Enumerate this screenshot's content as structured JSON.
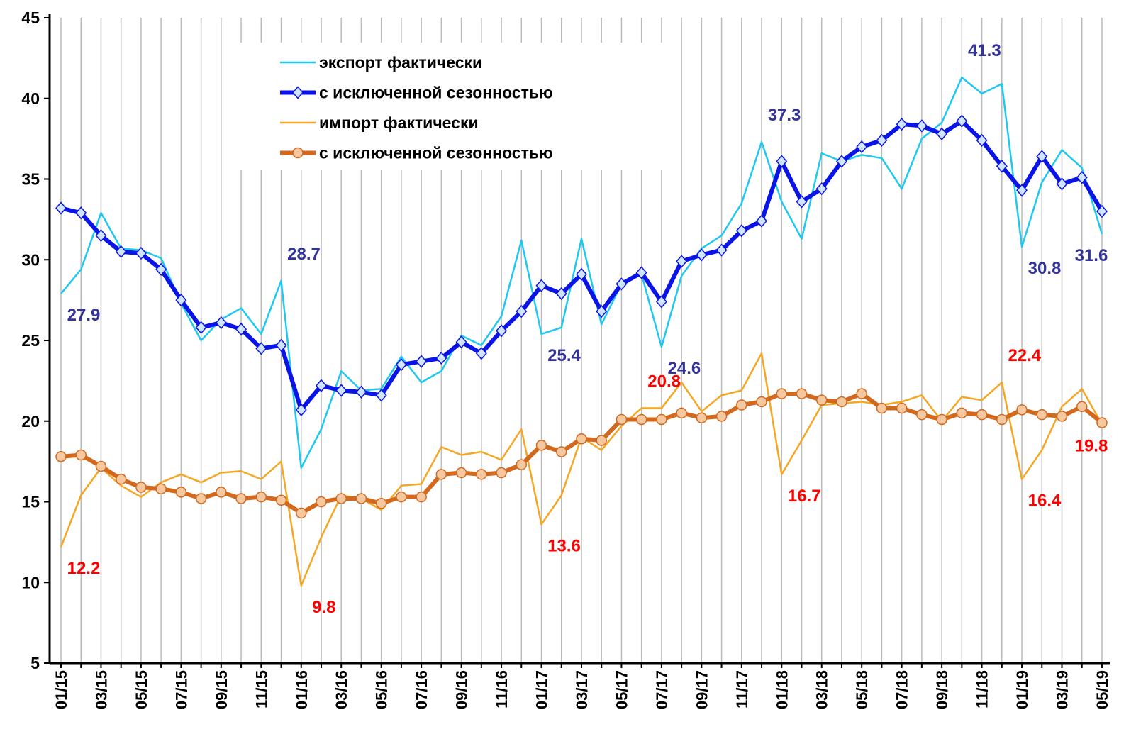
{
  "chart_data": {
    "type": "line",
    "categories": [
      "01/15",
      null,
      "03/15",
      null,
      "05/15",
      null,
      "07/15",
      null,
      "09/15",
      null,
      "11/15",
      null,
      "01/16",
      null,
      "03/16",
      null,
      "05/16",
      null,
      "07/16",
      null,
      "09/16",
      null,
      "11/16",
      null,
      "01/17",
      null,
      "03/17",
      null,
      "05/17",
      null,
      "07/17",
      null,
      "09/17",
      null,
      "11/17",
      null,
      "01/18",
      null,
      "03/18",
      null,
      "05/18",
      null,
      "07/18",
      null,
      "09/18",
      null,
      "11/18",
      null,
      "01/19",
      null,
      "03/19",
      null,
      "05/19"
    ],
    "ylim": [
      5,
      45
    ],
    "yticks": [
      5,
      10,
      15,
      20,
      25,
      30,
      35,
      40,
      45
    ],
    "grid": true,
    "series": [
      {
        "name": "экспорт фактически",
        "color": "#1ec8f0",
        "width": 2.5,
        "marker": null,
        "label_color": "#333399",
        "values": [
          27.9,
          29.4,
          32.9,
          30.7,
          30.6,
          30.1,
          27.3,
          25.0,
          26.3,
          27.0,
          25.4,
          28.7,
          17.1,
          19.5,
          23.1,
          21.9,
          22.0,
          24.0,
          22.4,
          23.1,
          25.3,
          24.7,
          26.5,
          31.2,
          25.4,
          25.8,
          31.3,
          26.0,
          28.5,
          29.1,
          24.6,
          29.0,
          30.7,
          31.5,
          33.5,
          37.3,
          33.6,
          31.3,
          36.6,
          36.1,
          36.5,
          36.3,
          34.4,
          37.5,
          38.5,
          41.3,
          40.3,
          40.9,
          30.8,
          34.8,
          36.8,
          35.7,
          31.6
        ],
        "value_labels": [
          "27.9",
          null,
          null,
          null,
          null,
          null,
          null,
          null,
          null,
          null,
          null,
          "28.7",
          null,
          null,
          null,
          null,
          null,
          null,
          null,
          null,
          null,
          null,
          null,
          null,
          "25.4",
          null,
          null,
          null,
          null,
          null,
          "24.6",
          null,
          null,
          null,
          null,
          "37.3",
          null,
          null,
          null,
          null,
          null,
          null,
          null,
          null,
          null,
          "41.3",
          null,
          null,
          "30.8",
          null,
          null,
          null,
          "31.6"
        ]
      },
      {
        "name": "с исключенной сезонностью",
        "color": "#0a14e6",
        "width": 6,
        "marker": "diamond",
        "marker_fill": "#d0e4ff",
        "values": [
          33.2,
          32.9,
          31.5,
          30.5,
          30.4,
          29.4,
          27.5,
          25.8,
          26.1,
          25.7,
          24.5,
          24.7,
          20.7,
          22.2,
          21.9,
          21.8,
          21.6,
          23.5,
          23.7,
          23.9,
          24.9,
          24.2,
          25.6,
          26.8,
          28.4,
          27.9,
          29.1,
          26.8,
          28.5,
          29.2,
          27.4,
          29.9,
          30.3,
          30.6,
          31.8,
          32.4,
          36.1,
          33.6,
          34.4,
          36.1,
          37.0,
          37.4,
          38.4,
          38.3,
          37.8,
          38.6,
          37.4,
          35.8,
          34.3,
          36.4,
          34.7,
          35.1,
          33.0
        ]
      },
      {
        "name": "импорт фактически",
        "color": "#f5a623",
        "width": 2.5,
        "marker": null,
        "label_color": "#ff0000",
        "values": [
          12.2,
          15.4,
          17.1,
          16.0,
          15.3,
          16.2,
          16.7,
          16.2,
          16.8,
          16.9,
          16.4,
          17.5,
          9.8,
          12.8,
          15.4,
          15.2,
          14.5,
          16.0,
          16.1,
          18.4,
          17.9,
          18.1,
          17.6,
          19.5,
          13.6,
          15.4,
          19.0,
          18.2,
          19.7,
          20.8,
          20.8,
          22.4,
          20.6,
          21.6,
          21.9,
          24.2,
          16.7,
          18.8,
          21.0,
          21.1,
          21.2,
          21.0,
          21.2,
          21.6,
          20.0,
          21.5,
          21.3,
          22.4,
          16.4,
          18.2,
          20.9,
          22.0,
          19.8
        ],
        "value_labels": [
          "12.2",
          null,
          null,
          null,
          null,
          null,
          null,
          null,
          null,
          null,
          null,
          null,
          "9.8",
          null,
          null,
          null,
          null,
          null,
          null,
          null,
          null,
          null,
          null,
          null,
          "13.6",
          null,
          null,
          null,
          null,
          "20.8",
          null,
          null,
          null,
          null,
          null,
          null,
          "16.7",
          null,
          null,
          null,
          null,
          null,
          null,
          null,
          null,
          null,
          null,
          "22.4",
          "16.4",
          null,
          null,
          null,
          "19.8"
        ]
      },
      {
        "name": "с исключенной сезонностью",
        "color": "#d2691e",
        "width": 6,
        "marker": "circle",
        "marker_fill": "#f5c8a0",
        "values": [
          17.8,
          17.9,
          17.2,
          16.4,
          15.9,
          15.8,
          15.6,
          15.2,
          15.6,
          15.2,
          15.3,
          15.1,
          14.3,
          15.0,
          15.2,
          15.2,
          14.9,
          15.3,
          15.3,
          16.7,
          16.8,
          16.7,
          16.8,
          17.3,
          18.5,
          18.1,
          18.9,
          18.8,
          20.1,
          20.1,
          20.1,
          20.5,
          20.2,
          20.3,
          21.0,
          21.2,
          21.7,
          21.7,
          21.3,
          21.2,
          21.7,
          20.8,
          20.8,
          20.4,
          20.1,
          20.5,
          20.4,
          20.1,
          20.7,
          20.4,
          20.3,
          20.9,
          19.9
        ]
      }
    ]
  }
}
